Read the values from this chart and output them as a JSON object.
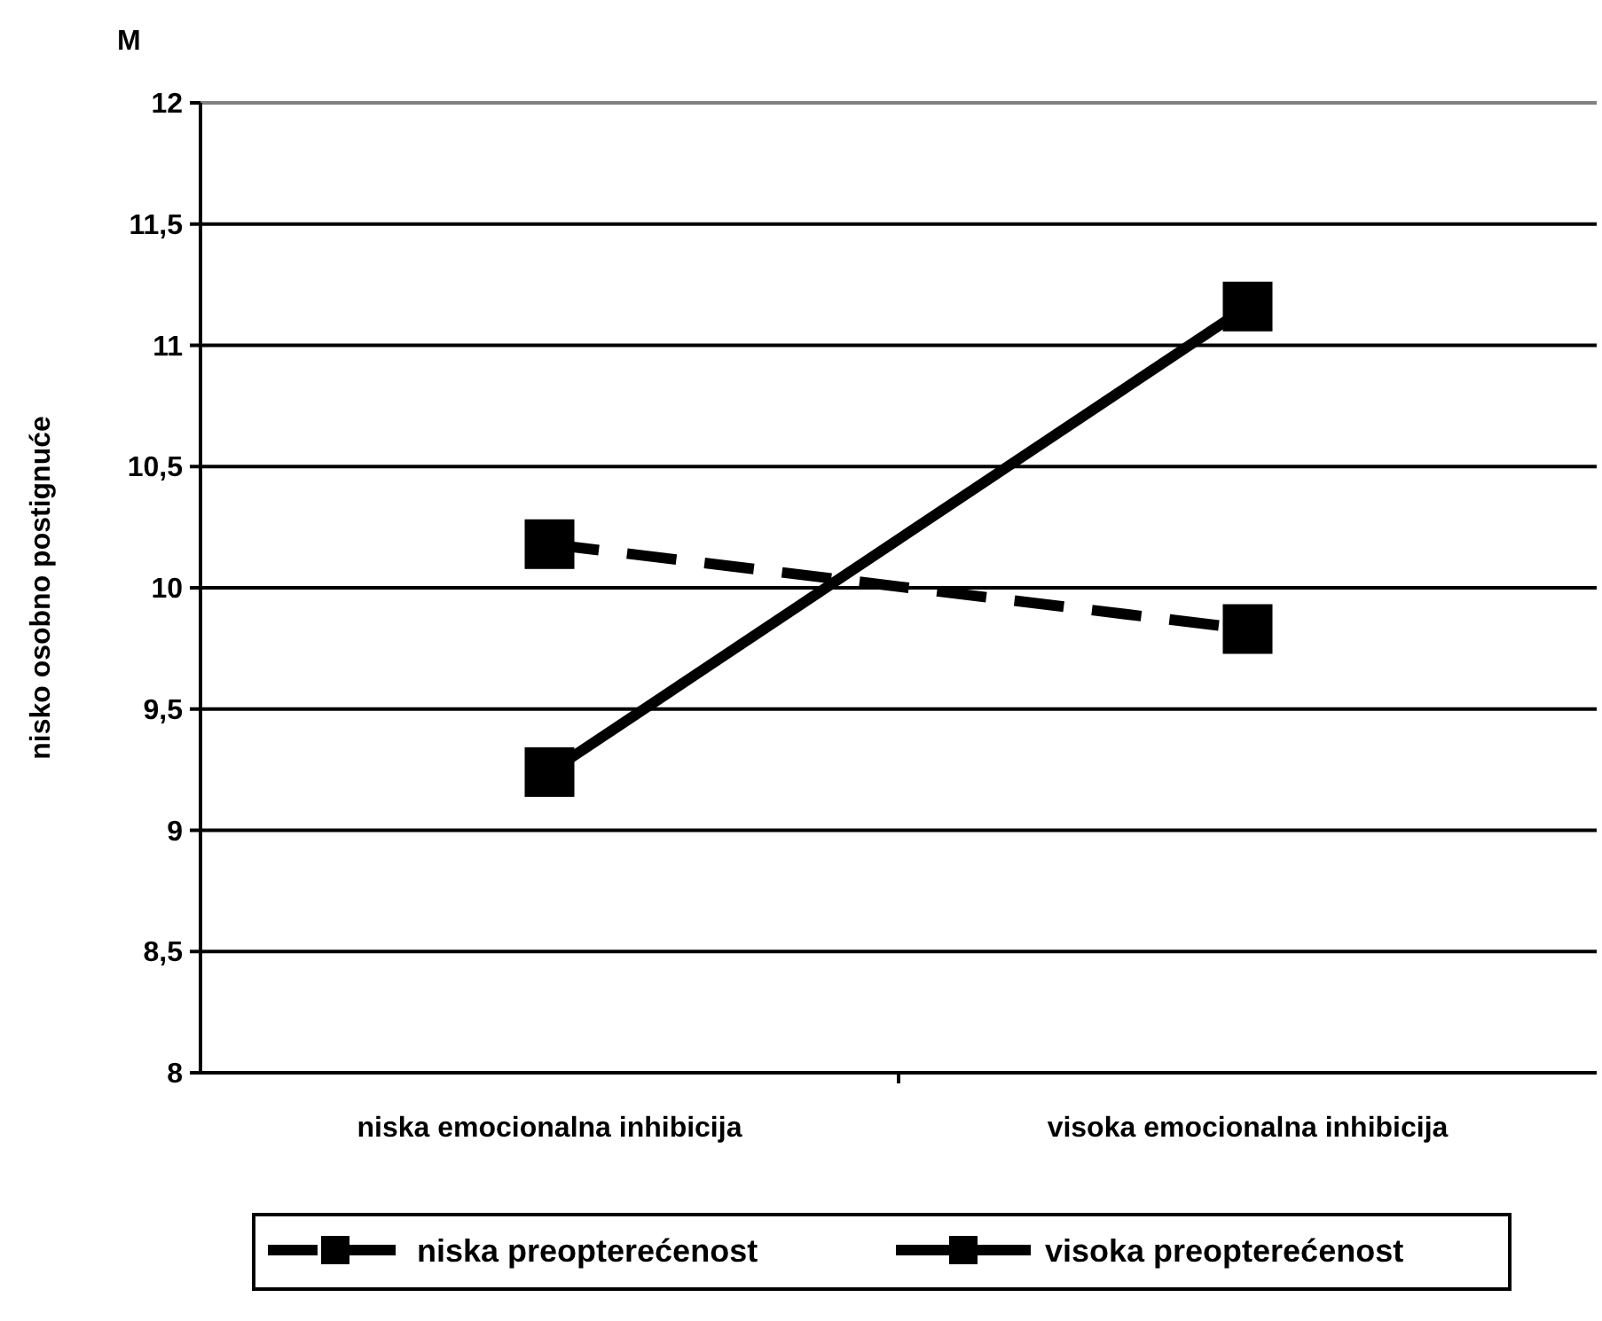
{
  "chart_data": {
    "type": "line",
    "ylabel": "nisko osobno postignuće",
    "annotations": [
      "M"
    ],
    "categories": [
      "niska emocionalna inhibicija",
      "visoka emocionalna inhibicija"
    ],
    "series": [
      {
        "name": "niska preopterećenost",
        "color": "#000000",
        "values": [
          10.18,
          9.83
        ],
        "line_style": "dashed"
      },
      {
        "name": "visoka preopterećenost",
        "color": "#000000",
        "values": [
          9.24,
          11.16
        ],
        "line_style": "solid"
      }
    ],
    "ylim": [
      8,
      12
    ],
    "yticks": [
      8,
      {
        "value": 8.5,
        "label": "8,5"
      },
      9,
      {
        "value": 9.5,
        "label": "9,5"
      },
      10,
      {
        "value": 10.5,
        "label": "10,5"
      },
      11,
      {
        "value": 11.5,
        "label": "11,5"
      },
      12
    ],
    "grid": "y",
    "legend": "bottom",
    "marker": "square"
  }
}
